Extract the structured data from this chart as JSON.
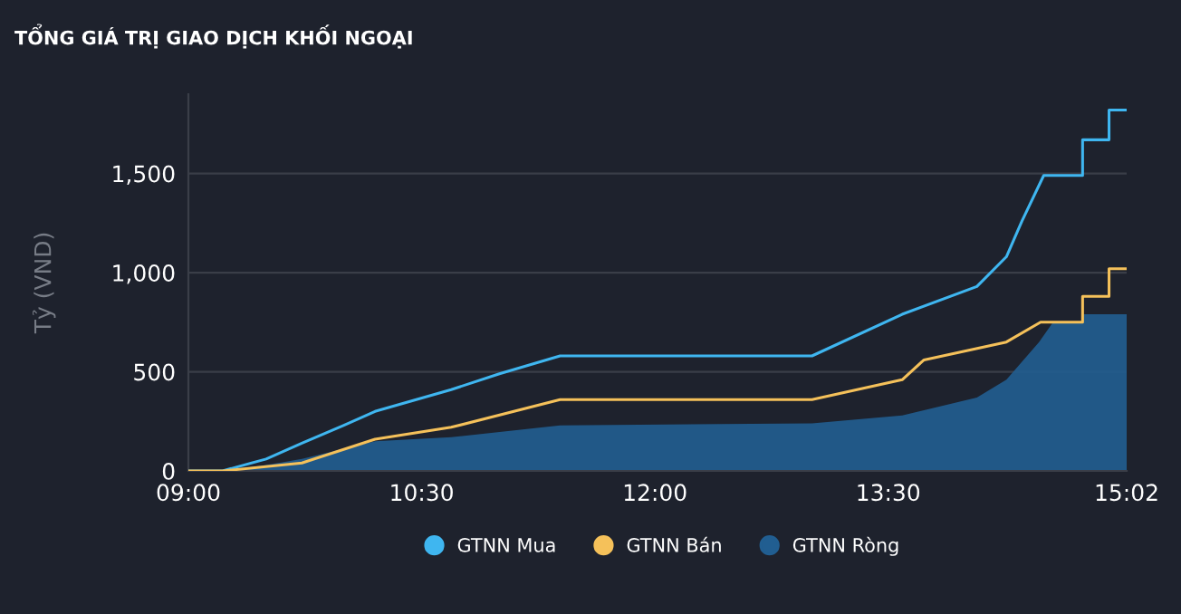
{
  "chart_data": {
    "type": "line",
    "title": "TỔNG GIÁ TRỊ GIAO DỊCH KHỐI NGOẠI",
    "ylabel": "Tỷ (VND)",
    "xlim": [
      9,
      15.0333
    ],
    "xticks": [
      {
        "value": 9,
        "label": "09:00"
      },
      {
        "value": 10.5,
        "label": "10:30"
      },
      {
        "value": 12,
        "label": "12:00"
      },
      {
        "value": 13.5,
        "label": "13:30"
      },
      {
        "value": 15.0333,
        "label": "15:02"
      }
    ],
    "ylim": [
      0,
      1900
    ],
    "yticks": [
      {
        "value": 0,
        "label": "0"
      },
      {
        "value": 500,
        "label": "500"
      },
      {
        "value": 1000,
        "label": "1,000"
      },
      {
        "value": 1500,
        "label": "1,500"
      }
    ],
    "grid": "y",
    "legend": "bottom",
    "series": [
      {
        "name": "GTNN Ròng",
        "type": "area",
        "color": "#215e91",
        "x": [
          9,
          9.22,
          9.5,
          9.73,
          10.2,
          10.69,
          11.39,
          13.01,
          13.59,
          14.07,
          14.26,
          14.47,
          14.56,
          14.75,
          14.75,
          15.0333
        ],
        "values": [
          0,
          0,
          30,
          60,
          150,
          170,
          230,
          240,
          280,
          370,
          460,
          650,
          750,
          750,
          790,
          790
        ]
      },
      {
        "name": "GTNN Mua",
        "color": "#3fb6f0",
        "x": [
          9,
          9.22,
          9.5,
          9.73,
          10.0,
          10.2,
          10.69,
          11.0,
          11.39,
          13.01,
          13.59,
          14.07,
          14.26,
          14.36,
          14.5,
          14.75,
          14.75,
          14.92,
          14.92,
          15.0333
        ],
        "values": [
          0,
          0,
          60,
          140,
          230,
          300,
          410,
          490,
          580,
          580,
          790,
          930,
          1080,
          1260,
          1490,
          1490,
          1670,
          1670,
          1820,
          1820
        ]
      },
      {
        "name": "GTNN Bán",
        "color": "#f5c15a",
        "x": [
          9,
          9.22,
          9.73,
          10.2,
          10.69,
          11.39,
          13.01,
          13.59,
          13.73,
          14.26,
          14.48,
          14.75,
          14.75,
          14.92,
          14.92,
          15.0333
        ],
        "values": [
          0,
          0,
          40,
          160,
          220,
          360,
          360,
          460,
          560,
          650,
          750,
          750,
          880,
          880,
          1020,
          1020
        ]
      }
    ]
  }
}
